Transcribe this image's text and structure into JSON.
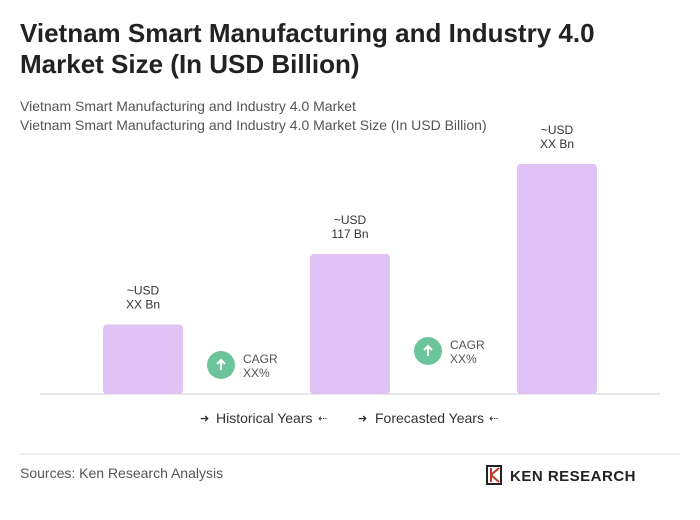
{
  "chart_data": {
    "type": "bar",
    "title": "Vietnam Smart Manufacturing and Industry 4.0 Market Size (In USD Billion)",
    "subtitle": [
      "Vietnam Smart Manufacturing and Industry 4.0 Market",
      "Vietnam Smart Manufacturing and Industry 4.0 Market Size (In USD Billion)"
    ],
    "categories": [
      null,
      null,
      null
    ],
    "values": [
      58,
      117,
      192
    ],
    "value_labels": [
      "~USD XX Bn",
      "~USD 117 Bn",
      "~USD XX Bn"
    ],
    "color": "#dfc3f7",
    "annotations": [
      "CAGR XX%",
      "CAGR XX%"
    ],
    "legend": [
      "Historical Years",
      "Forecasted Years"
    ]
  },
  "footer": {
    "source": "Sources: Ken Research Analysis",
    "logo": "KEN RESEARCH"
  }
}
